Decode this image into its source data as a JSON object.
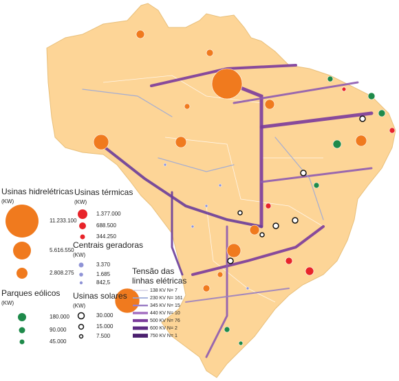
{
  "legends": {
    "hydro": {
      "title": "Usinas hidrelétricas",
      "unit": "(KW)",
      "items": [
        "11.233.100",
        "5.616.550",
        "2.808.275"
      ]
    },
    "thermal": {
      "title": "Usinas térmicas",
      "unit": "(KW)",
      "items": [
        "1.377.000",
        "688.500",
        "344.250"
      ]
    },
    "small_plants": {
      "title": "Centrais geradoras",
      "unit": "(KW)",
      "items": [
        "3.370",
        "1.685",
        "842,5"
      ]
    },
    "wind": {
      "title": "Parques eólicos",
      "unit": "(KW)",
      "items": [
        "180.000",
        "90.000",
        "45.000"
      ]
    },
    "solar": {
      "title": "Usinas solares",
      "unit": "(KW)",
      "items": [
        "30.000",
        "15.000",
        "7.500"
      ]
    },
    "lines": {
      "title_lines": [
        "Tensão das",
        "linhas elétricas"
      ],
      "items": [
        "138 KV N= 7",
        "230 KV N= 161",
        "345 KV N= 15",
        "440 KV N= 10",
        "500 KV N= 76",
        "600 KV N= 2",
        "750 KV N= 1"
      ]
    }
  }
}
